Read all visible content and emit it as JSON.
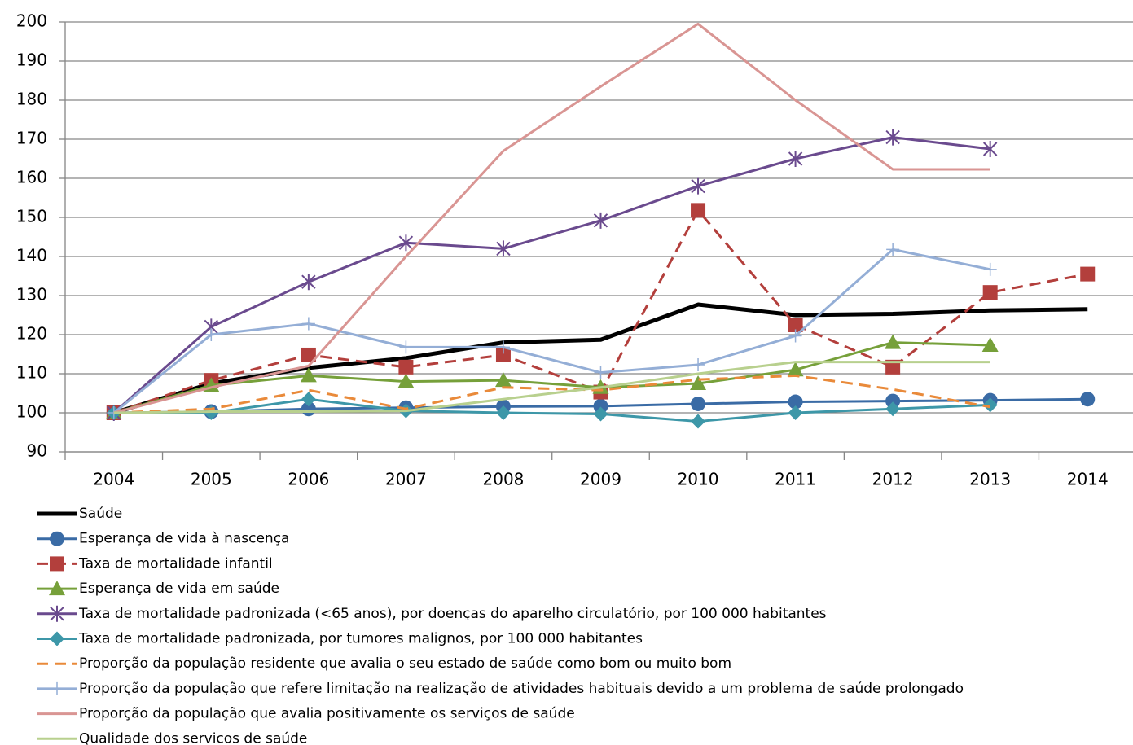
{
  "chart_data": {
    "type": "line",
    "categories": [
      "2004",
      "2005",
      "2006",
      "2007",
      "2008",
      "2009",
      "2010",
      "2011",
      "2012",
      "2013",
      "2014"
    ],
    "ylim": [
      90,
      200
    ],
    "yticks": [
      90,
      100,
      110,
      120,
      130,
      140,
      150,
      160,
      170,
      180,
      190,
      200
    ],
    "grid": true,
    "legend": "bottom",
    "series": [
      {
        "name": "Saúde",
        "color": "#000000",
        "width": 5,
        "marker": "none",
        "dash": false,
        "values": [
          100,
          107.5,
          111.5,
          114,
          118,
          118.7,
          127.7,
          125,
          125.3,
          126.2,
          126.5
        ]
      },
      {
        "name": "Esperança de vida à nascença",
        "color": "#3a6ba5",
        "width": 3,
        "marker": "circle",
        "dash": false,
        "values": [
          100,
          100.3,
          101,
          101.3,
          101.6,
          101.7,
          102.3,
          102.8,
          103,
          103.2,
          103.5
        ]
      },
      {
        "name": "Taxa de mortalidade infantil",
        "color": "#b33f3c",
        "width": 3,
        "marker": "square",
        "dash": true,
        "values": [
          100,
          108.3,
          114.8,
          111.7,
          114.8,
          105.3,
          151.8,
          122.5,
          111.7,
          130.8,
          135.5
        ]
      },
      {
        "name": "Esperança de vida em saúde",
        "color": "#76a03a",
        "width": 3,
        "marker": "triangle",
        "dash": false,
        "values": [
          100,
          107,
          109.5,
          108,
          108.3,
          106.5,
          107.5,
          111,
          118,
          117.3,
          null
        ]
      },
      {
        "name": "Taxa de mortalidade padronizada (<65 anos), por doenças do aparelho circulatório, por 100 000 habitantes",
        "color": "#6a4a8e",
        "width": 3,
        "marker": "star",
        "dash": false,
        "values": [
          100,
          122,
          133.5,
          143.5,
          142,
          149.2,
          158,
          165,
          170.5,
          167.5,
          null
        ]
      },
      {
        "name": "Taxa de mortalidade padronizada, por tumores malignos, por 100 000 habitantes",
        "color": "#3d97a8",
        "width": 3,
        "marker": "diamond",
        "dash": false,
        "values": [
          100,
          100,
          103.5,
          100.5,
          100,
          99.7,
          97.8,
          100,
          101,
          102,
          null
        ]
      },
      {
        "name": "Proporção da população residente que avalia o seu estado de saúde como bom ou muito bom",
        "color": "#e98a3a",
        "width": 3,
        "marker": "none",
        "dash": true,
        "values": [
          100,
          101,
          105.8,
          101,
          106.5,
          105.8,
          108.5,
          109.5,
          106,
          101.5,
          null
        ]
      },
      {
        "name": "Proporção da população que refere limitação na realização de atividades habituais devido a um problema de saúde prolongado",
        "color": "#94aed6",
        "width": 3,
        "marker": "plus",
        "dash": false,
        "values": [
          100,
          120,
          122.8,
          116.8,
          116.8,
          110.3,
          112.3,
          119.7,
          141.8,
          136.7,
          null
        ]
      },
      {
        "name": "Proporção da população que avalia positivamente os serviços de saúde",
        "color": "#d99593",
        "width": 3,
        "marker": "none",
        "dash": false,
        "values": [
          100,
          106.5,
          112,
          140,
          167,
          183.5,
          199.5,
          180,
          162.3,
          162.3,
          null
        ]
      },
      {
        "name": "Qualidade dos servicos de saúde",
        "color": "#b8d08e",
        "width": 3,
        "marker": "none",
        "dash": false,
        "values": [
          100,
          100.3,
          100.3,
          100.5,
          103.5,
          106.5,
          110,
          113,
          113,
          113,
          null
        ]
      }
    ]
  }
}
